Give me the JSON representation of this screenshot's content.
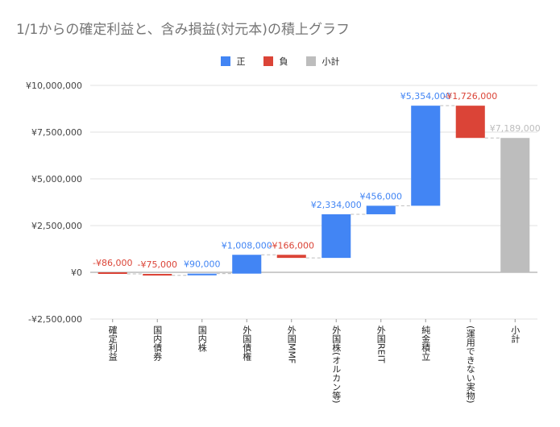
{
  "chart_data": {
    "type": "waterfall",
    "title": "1/1からの確定利益と、含み損益(対元本)の積上グラフ",
    "legend_position": "top",
    "legend": [
      {
        "label": "正",
        "color": "#4285f4"
      },
      {
        "label": "負",
        "color": "#db4437"
      },
      {
        "label": "小計",
        "color": "#bdbdbd"
      }
    ],
    "ylim": [
      -2500000,
      10000000
    ],
    "y_ticks": [
      {
        "value": 10000000,
        "label": "¥10,000,000"
      },
      {
        "value": 7500000,
        "label": "¥7,500,000"
      },
      {
        "value": 5000000,
        "label": "¥5,000,000"
      },
      {
        "value": 2500000,
        "label": "¥2,500,000"
      },
      {
        "value": 0,
        "label": "¥0"
      },
      {
        "value": -2500000,
        "label": "-¥2,500,000"
      }
    ],
    "grid": true,
    "categories": [
      {
        "name": "確定利益",
        "value": -86000,
        "kind": "負",
        "label": "-¥86,000"
      },
      {
        "name": "国内債券",
        "value": -75000,
        "kind": "負",
        "label": "-¥75,000"
      },
      {
        "name": "国内株",
        "value": 90000,
        "kind": "正",
        "label": "¥90,000"
      },
      {
        "name": "外国債権",
        "value": 1008000,
        "kind": "正",
        "label": "¥1,008,000"
      },
      {
        "name": "外国MMF",
        "value": -166000,
        "kind": "負",
        "label": "-¥166,000"
      },
      {
        "name": "外国株(オルカン等)",
        "value": 2334000,
        "kind": "正",
        "label": "¥2,334,000"
      },
      {
        "name": "外国REIT",
        "value": 456000,
        "kind": "正",
        "label": "¥456,000"
      },
      {
        "name": "純金積立",
        "value": 5354000,
        "kind": "正",
        "label": "¥5,354,000"
      },
      {
        "name": "(運用できない実物)",
        "value": -1726000,
        "kind": "負",
        "label": "-¥1,726,000"
      },
      {
        "name": "小計",
        "value": 7189000,
        "kind": "小計",
        "label": "¥7,189,000"
      }
    ]
  }
}
